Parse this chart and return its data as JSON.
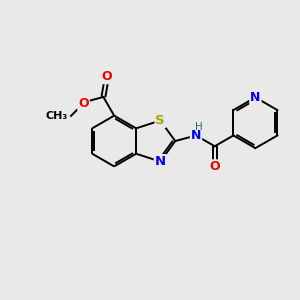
{
  "bg_color": "#e9e9e9",
  "bond_color": "#000000",
  "bond_width": 1.4,
  "atom_colors": {
    "S": "#aaaa00",
    "N": "#0000ee",
    "O": "#ee0000",
    "H": "#336666",
    "C": "#000000"
  },
  "font_size": 8.5,
  "figsize": [
    3.0,
    3.0
  ],
  "dpi": 100,
  "xlim": [
    0,
    10
  ],
  "ylim": [
    0,
    10
  ]
}
